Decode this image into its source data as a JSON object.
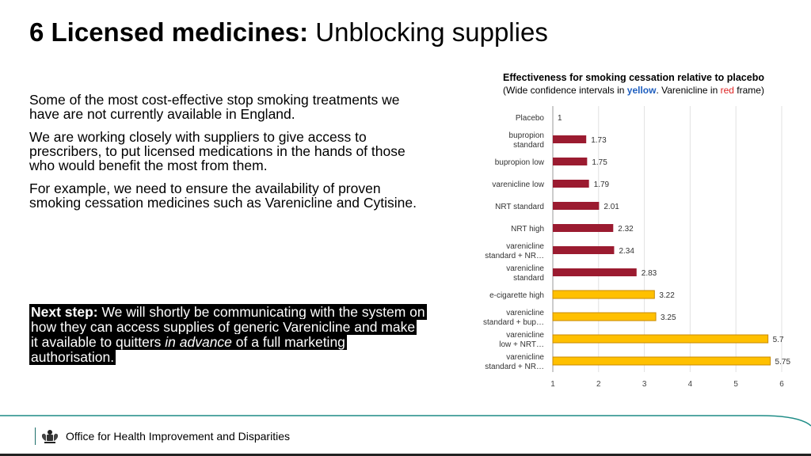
{
  "slide": {
    "title_bold": "6 Licensed medicines:",
    "title_rest": " Unblocking supplies",
    "paragraphs": [
      "Some of the most cost-effective stop smoking treatments we have are not currently available in England.",
      "We are working closely with suppliers to give access to prescribers, to put licensed medications in the hands of those who would benefit the most from them.",
      "For example, we need to ensure the availability of proven smoking cessation medicines such as Varenicline and Cytisine."
    ],
    "next_step_label": "Next step:",
    "next_step_text": " We will shortly be communicating with the system on how they can access supplies of generic Varenicline and make it available to  quitters ",
    "next_step_italic": "in advance",
    "next_step_tail": " of a full marketing authorisation."
  },
  "chart_header": {
    "title": "Effectiveness for smoking cessation relative to placebo",
    "sub_a": "(Wide confidence intervals in ",
    "sub_yellow": "yellow",
    "sub_b": ". Varenicline in ",
    "sub_red": "red",
    "sub_c": " frame)"
  },
  "chart_data": {
    "type": "bar",
    "orientation": "horizontal",
    "title": "Effectiveness for smoking cessation relative to placebo",
    "categories": [
      [
        "Placebo"
      ],
      [
        "bupropion",
        "standard"
      ],
      [
        "bupropion low"
      ],
      [
        "varenicline low"
      ],
      [
        "NRT standard"
      ],
      [
        "NRT high"
      ],
      [
        "varenicline",
        "standard + NR…"
      ],
      [
        "varenicline",
        "standard"
      ],
      [
        "e-cigarette high"
      ],
      [
        "varenicline",
        "standard + bup…"
      ],
      [
        "varenicline",
        "low + NRT…"
      ],
      [
        "varenicline",
        "standard + NR…"
      ]
    ],
    "values": [
      1,
      1.73,
      1.75,
      1.79,
      2.01,
      2.32,
      2.34,
      2.83,
      3.22,
      3.25,
      5.7,
      5.75
    ],
    "value_labels": [
      "1",
      "1.73",
      "1.75",
      "1.79",
      "2.01",
      "2.32",
      "2.34",
      "2.83",
      "3.22",
      "3.25",
      "5.7",
      "5.75"
    ],
    "wide_ci": [
      false,
      false,
      false,
      false,
      false,
      false,
      false,
      false,
      true,
      true,
      true,
      true
    ],
    "xlim": [
      1,
      6
    ],
    "xticks": [
      "1",
      "2",
      "3",
      "4",
      "5",
      "6"
    ],
    "grid": true,
    "colors": {
      "narrow": "#9b1b30",
      "wide_ci": "#ffc000",
      "outline": "#d33"
    }
  },
  "footer": {
    "org": "Office for Health Improvement and Disparities",
    "crest_icon": "royal-coat-of-arms-icon"
  },
  "colors": {
    "accent_teal": "#1d8c86"
  }
}
